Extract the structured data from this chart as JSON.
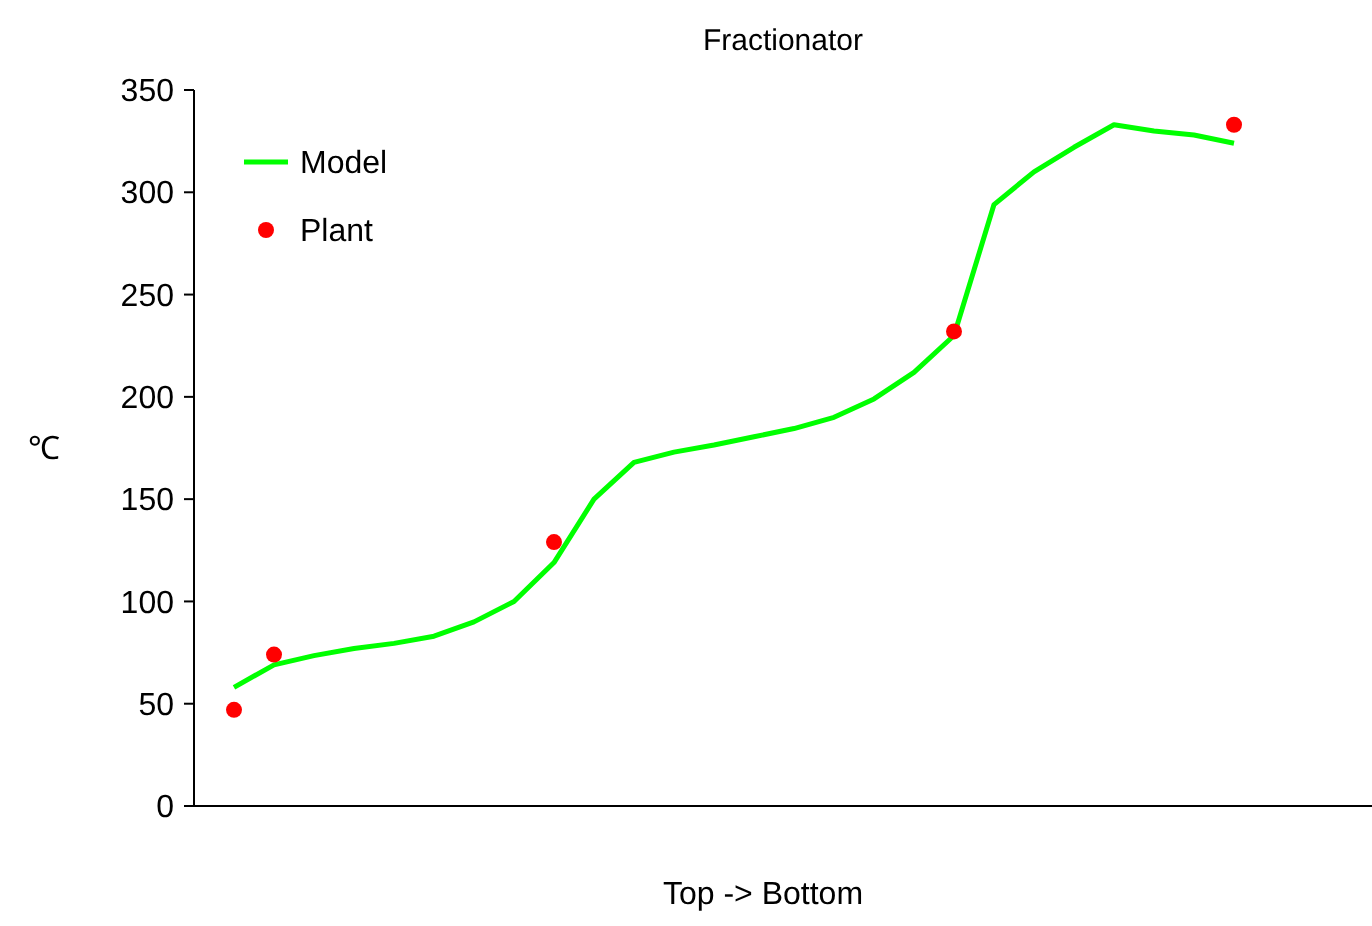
{
  "chart_data": {
    "type": "line",
    "title": "Fractionator",
    "xlabel": "Top -> Bottom",
    "ylabel": "℃",
    "categories": [
      null,
      null,
      null,
      null,
      null,
      null,
      null,
      null,
      null,
      null,
      null,
      null,
      null,
      null,
      null,
      null,
      null,
      null,
      null,
      null,
      null,
      null,
      null,
      null,
      null,
      null
    ],
    "ylim": [
      0,
      350
    ],
    "yticks": [
      0,
      50,
      100,
      150,
      200,
      250,
      300,
      350
    ],
    "grid": false,
    "legend": "top left",
    "series": [
      {
        "name": "Model",
        "color": "#00ff00",
        "values": [
          58,
          69,
          73.5,
          77,
          79.5,
          83,
          90,
          100,
          119,
          150,
          168,
          173,
          176.5,
          180.5,
          184.5,
          190,
          199,
          212,
          230,
          294,
          310,
          322,
          333,
          330,
          328,
          324
        ]
      },
      {
        "name": "Plant",
        "type": "scatter",
        "color": "#ff0000",
        "marker": "circle",
        "values": [
          47,
          74,
          null,
          null,
          null,
          null,
          null,
          null,
          129,
          null,
          null,
          null,
          null,
          null,
          null,
          null,
          null,
          null,
          232,
          null,
          null,
          null,
          null,
          null,
          null,
          333
        ]
      }
    ]
  }
}
